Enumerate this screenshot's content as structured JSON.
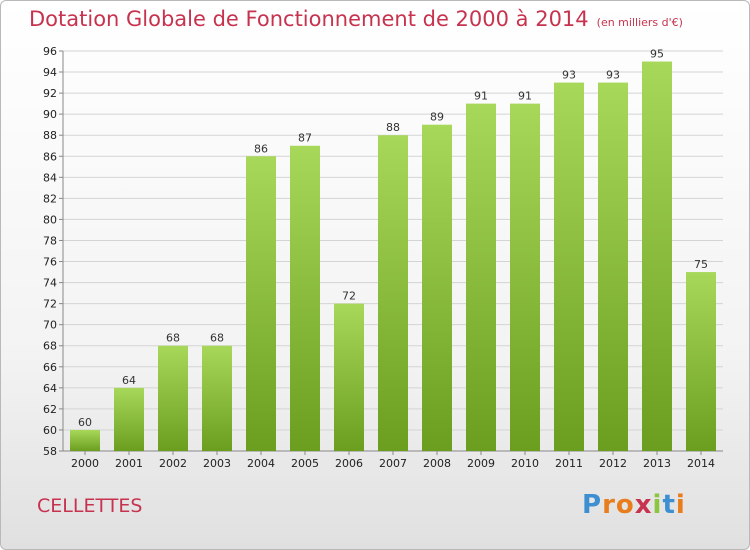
{
  "header": {
    "title": "Dotation Globale de Fonctionnement de 2000 à 2014",
    "subtitle": "(en milliers d'€)"
  },
  "commune": "CELLETTES",
  "logo": {
    "letters": [
      "P",
      "r",
      "o",
      "x",
      "i",
      "t",
      "i"
    ],
    "colors": [
      "#3d8fd1",
      "#e87d1e",
      "#e87d1e",
      "#c7334f",
      "#8cc63f",
      "#3d8fd1",
      "#e87d1e"
    ]
  },
  "colors": {
    "bar_top": "#a8d85a",
    "bar_bottom": "#6b9e1f",
    "grid": "#d4d4d4",
    "axis": "#888888"
  },
  "chart_data": {
    "type": "bar",
    "title": "Dotation Globale de Fonctionnement de 2000 à 2014",
    "subtitle": "(en milliers d'€)",
    "categories": [
      "2000",
      "2001",
      "2002",
      "2003",
      "2004",
      "2005",
      "2006",
      "2007",
      "2008",
      "2009",
      "2010",
      "2011",
      "2012",
      "2013",
      "2014"
    ],
    "values": [
      60,
      64,
      68,
      68,
      86,
      87,
      72,
      88,
      89,
      91,
      91,
      93,
      93,
      95,
      75
    ],
    "ylim": [
      58,
      96
    ],
    "ytick_step": 2,
    "grid": true,
    "data_labels": true
  }
}
